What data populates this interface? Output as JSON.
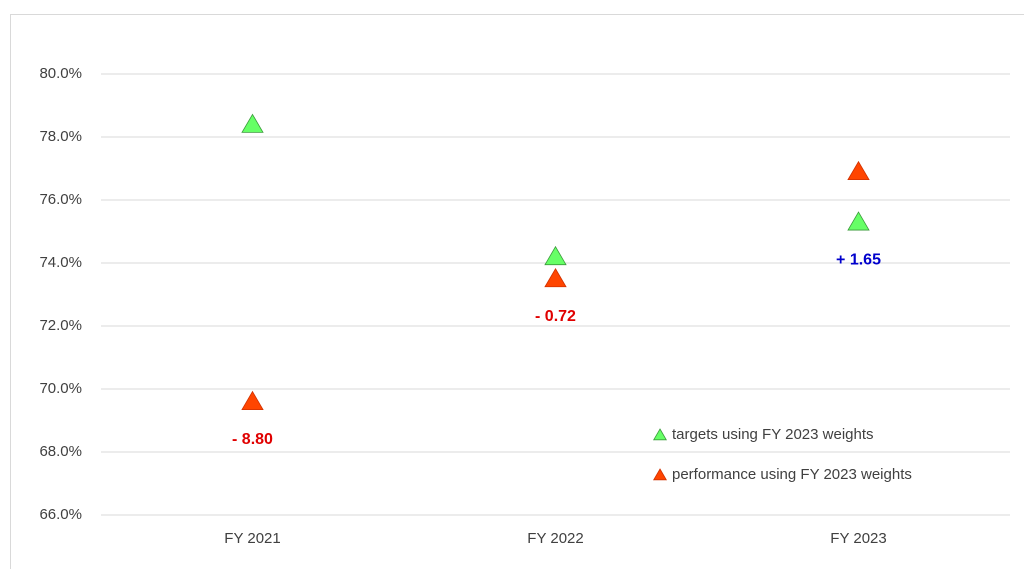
{
  "chart_data": {
    "type": "scatter",
    "categories": [
      "FY 2021",
      "FY 2022",
      "FY 2023"
    ],
    "series": [
      {
        "name": "targets using FY 2023 weights",
        "color": "#66ff66",
        "values": [
          78.4,
          74.2,
          75.3
        ]
      },
      {
        "name": "performance using FY 2023 weights",
        "color": "#ff4500",
        "values": [
          69.6,
          73.5,
          76.9
        ]
      }
    ],
    "annotations": [
      {
        "text": "- 8.80",
        "color": "#e00000"
      },
      {
        "text": "- 0.72",
        "color": "#e00000"
      },
      {
        "text": "+ 1.65",
        "color": "#0000cc"
      }
    ],
    "ylim": [
      66,
      81
    ],
    "yticks": [
      {
        "value": 66,
        "label": "66.0%"
      },
      {
        "value": 68,
        "label": "68.0%"
      },
      {
        "value": 70,
        "label": "70.0%"
      },
      {
        "value": 72,
        "label": "72.0%"
      },
      {
        "value": 74,
        "label": "74.0%"
      },
      {
        "value": 76,
        "label": "76.0%"
      },
      {
        "value": 78,
        "label": "78.0%"
      },
      {
        "value": 80,
        "label": "80.0%"
      }
    ],
    "grid": true,
    "legend": "lower right"
  }
}
